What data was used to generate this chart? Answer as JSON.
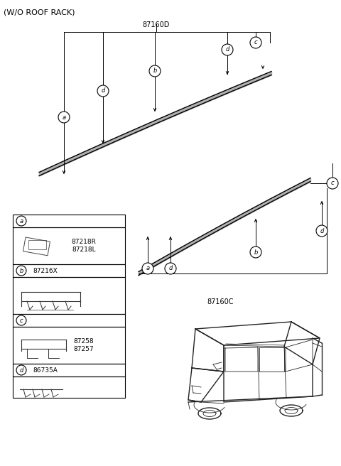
{
  "title": "(W/O ROOF RACK)",
  "bg_color": "#ffffff",
  "part_label_87160D": "87160D",
  "part_label_87160C": "87160C",
  "legend_letters": [
    "a",
    "b",
    "c",
    "d"
  ],
  "legend_part_b": "87216X",
  "legend_part_d": "86735A",
  "legend_part_a1": "87218R",
  "legend_part_a2": "87218L",
  "legend_part_c1": "87258",
  "legend_part_c2": "87257",
  "font_size_title": 8,
  "font_size_label": 7,
  "font_size_part": 6.5,
  "font_size_circle": 6
}
